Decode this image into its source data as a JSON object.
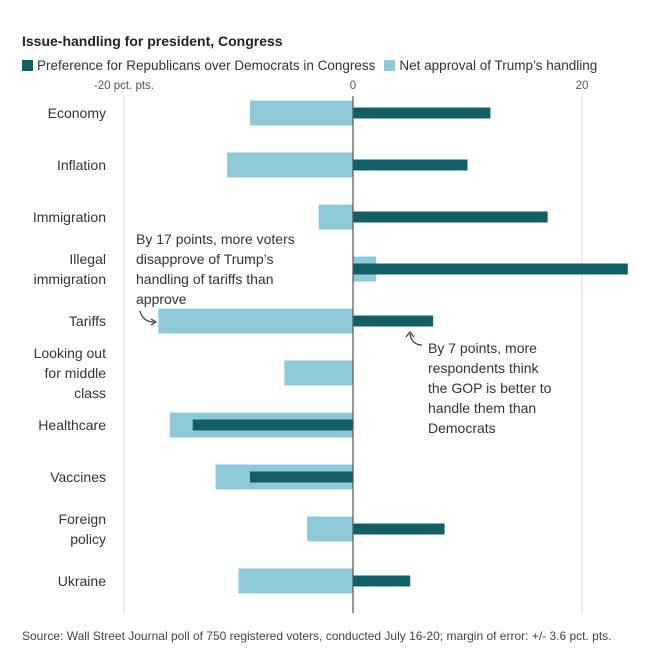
{
  "chart_data": {
    "type": "bar",
    "orientation": "horizontal",
    "title": "Issue-handling for president, Congress",
    "xlabel": "",
    "ylabel": "",
    "xlim": [
      -20,
      24
    ],
    "ticks": [
      {
        "value": -20,
        "label": "-20 pct. pts."
      },
      {
        "value": 0,
        "label": "0"
      },
      {
        "value": 20,
        "label": "20"
      }
    ],
    "categories": [
      [
        "Economy"
      ],
      [
        "Inflation"
      ],
      [
        "Immigration"
      ],
      [
        "Illegal",
        "immigration"
      ],
      [
        "Tariffs"
      ],
      [
        "Looking out",
        "for middle",
        "class"
      ],
      [
        "Healthcare"
      ],
      [
        "Vaccines"
      ],
      [
        "Foreign",
        "policy"
      ],
      [
        "Ukraine"
      ]
    ],
    "series": [
      {
        "name": "Net approval of Trump’s handling",
        "color": "#8ecad6",
        "values": [
          -9,
          -11,
          -3,
          2,
          -17,
          -6,
          -16,
          -12,
          -4,
          -10
        ]
      },
      {
        "name": "Preference for Republicans over Democrats in Congress",
        "color": "#135f66",
        "values": [
          12,
          10,
          17,
          24,
          7,
          0,
          -14,
          -9,
          8,
          5
        ]
      }
    ],
    "legend": "top-left"
  },
  "annotations": {
    "tariffs_approval": [
      "By 17 points, more voters",
      "disapprove of Trump’s",
      "handling of tariffs than",
      "approve"
    ],
    "tariffs_gop": [
      "By 7 points, more",
      "respondents think",
      "the GOP is better to",
      "handle them than",
      "Democrats"
    ]
  },
  "legend_items": {
    "dark": "Preference for Republicans over Democrats in Congress",
    "light": "Net approval of Trump’s handling"
  },
  "colors": {
    "dark": "#135f66",
    "light": "#8ecad6",
    "grid": "#d9d9d9",
    "axis": "#555555"
  },
  "source": "Source: Wall Street Journal poll of 750 registered voters, conducted July 16-20; margin of error: +/- 3.6 pct. pts."
}
